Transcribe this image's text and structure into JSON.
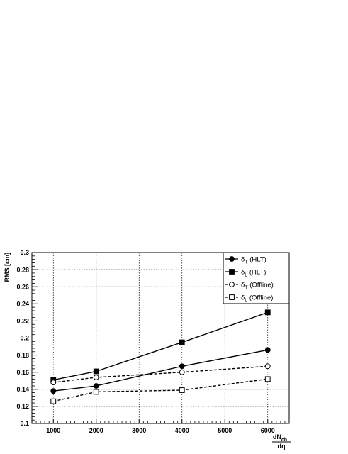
{
  "chart_data": {
    "type": "line",
    "title": "",
    "ylabel": "RMS [cm]",
    "xlabel": {
      "numerator": "dN",
      "numerator_sub": "ch",
      "denominator": "dη"
    },
    "xlim": [
      500,
      6500
    ],
    "ylim": [
      0.1,
      0.3
    ],
    "xticks": [
      "1000",
      "2000",
      "3000",
      "4000",
      "5000",
      "6000"
    ],
    "yticks": [
      "0.1",
      "0.12",
      "0.14",
      "0.16",
      "0.18",
      "0.2",
      "0.22",
      "0.24",
      "0.26",
      "0.28",
      "0.3"
    ],
    "grid": true,
    "legend_position": "top-right",
    "series": [
      {
        "name": "δT (HLT)",
        "legend": {
          "sym": "δ",
          "sub": "T",
          "suffix": " (HLT)"
        },
        "marker": "filled-circle",
        "line": "solid",
        "x": [
          1000,
          2000,
          4000,
          6000
        ],
        "y": [
          0.138,
          0.144,
          0.167,
          0.186
        ]
      },
      {
        "name": "δL (HLT)",
        "legend": {
          "sym": "δ",
          "sub": "L",
          "suffix": " (HLT)"
        },
        "marker": "filled-square",
        "line": "solid",
        "x": [
          1000,
          2000,
          4000,
          6000
        ],
        "y": [
          0.151,
          0.161,
          0.195,
          0.23
        ]
      },
      {
        "name": "δT (Offline)",
        "legend": {
          "sym": "δ",
          "sub": "T",
          "suffix": " (Offline)"
        },
        "marker": "open-circle",
        "line": "dashed",
        "x": [
          1000,
          2000,
          4000,
          6000
        ],
        "y": [
          0.148,
          0.154,
          0.16,
          0.167
        ]
      },
      {
        "name": "δL (Offline)",
        "legend": {
          "sym": "δ",
          "sub": "L",
          "suffix": " (Offline)"
        },
        "marker": "open-square",
        "line": "dashed",
        "x": [
          1000,
          2000,
          4000,
          6000
        ],
        "y": [
          0.126,
          0.137,
          0.139,
          0.152
        ]
      }
    ]
  }
}
